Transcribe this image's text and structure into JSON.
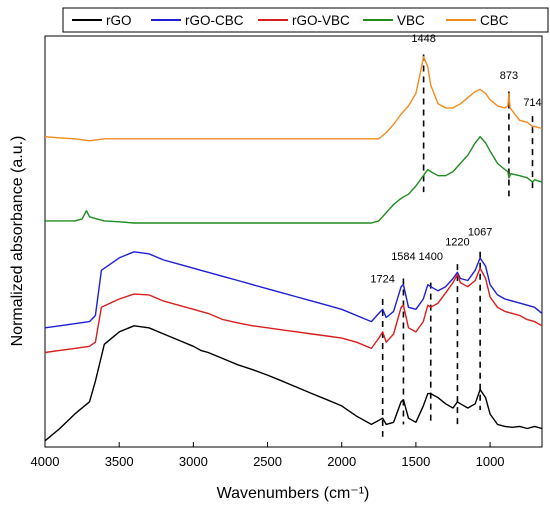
{
  "chart_data": {
    "type": "line",
    "xlabel": "Wavenumbers (cm⁻¹)",
    "ylabel": "Normalized absorbance (a.u.)",
    "xlim": [
      4000,
      650
    ],
    "x_reversed": true,
    "x_ticks": [
      "4000",
      "3500",
      "3000",
      "2500",
      "2000",
      "1500",
      "1000"
    ],
    "x_tick_values": [
      4000,
      3500,
      3000,
      2500,
      2000,
      1500,
      1000
    ],
    "ylim": [
      0,
      10
    ],
    "y_ticks_labeled": false,
    "grid": false,
    "legend_position": "top",
    "series": [
      {
        "name": "rGO",
        "color": "#000000",
        "points": [
          [
            4000,
            0.15
          ],
          [
            3900,
            0.45
          ],
          [
            3800,
            0.8
          ],
          [
            3700,
            1.1
          ],
          [
            3660,
            1.6
          ],
          [
            3600,
            2.5
          ],
          [
            3500,
            2.8
          ],
          [
            3400,
            2.95
          ],
          [
            3300,
            2.9
          ],
          [
            3200,
            2.75
          ],
          [
            3100,
            2.6
          ],
          [
            3000,
            2.45
          ],
          [
            2950,
            2.35
          ],
          [
            2900,
            2.3
          ],
          [
            2800,
            2.15
          ],
          [
            2700,
            2.0
          ],
          [
            2600,
            1.88
          ],
          [
            2500,
            1.75
          ],
          [
            2400,
            1.6
          ],
          [
            2300,
            1.45
          ],
          [
            2200,
            1.3
          ],
          [
            2100,
            1.15
          ],
          [
            2000,
            1.0
          ],
          [
            1900,
            0.75
          ],
          [
            1800,
            0.55
          ],
          [
            1750,
            0.65
          ],
          [
            1724,
            0.7
          ],
          [
            1700,
            0.55
          ],
          [
            1650,
            0.6
          ],
          [
            1600,
            1.1
          ],
          [
            1584,
            1.15
          ],
          [
            1550,
            0.7
          ],
          [
            1500,
            0.6
          ],
          [
            1450,
            1.0
          ],
          [
            1420,
            1.3
          ],
          [
            1400,
            1.3
          ],
          [
            1350,
            1.2
          ],
          [
            1300,
            1.05
          ],
          [
            1250,
            0.95
          ],
          [
            1220,
            1.1
          ],
          [
            1200,
            1.05
          ],
          [
            1150,
            0.95
          ],
          [
            1100,
            1.05
          ],
          [
            1067,
            1.4
          ],
          [
            1030,
            1.2
          ],
          [
            1000,
            0.8
          ],
          [
            950,
            0.55
          ],
          [
            900,
            0.5
          ],
          [
            850,
            0.48
          ],
          [
            800,
            0.5
          ],
          [
            750,
            0.45
          ],
          [
            700,
            0.5
          ],
          [
            650,
            0.45
          ]
        ]
      },
      {
        "name": "rGO-CBC",
        "color": "#1f1fd6",
        "points": [
          [
            4000,
            2.9
          ],
          [
            3900,
            2.95
          ],
          [
            3800,
            3.0
          ],
          [
            3700,
            3.05
          ],
          [
            3660,
            3.2
          ],
          [
            3620,
            4.3
          ],
          [
            3500,
            4.6
          ],
          [
            3400,
            4.75
          ],
          [
            3300,
            4.7
          ],
          [
            3200,
            4.55
          ],
          [
            3100,
            4.45
          ],
          [
            3000,
            4.35
          ],
          [
            2950,
            4.3
          ],
          [
            2900,
            4.25
          ],
          [
            2800,
            4.15
          ],
          [
            2700,
            4.05
          ],
          [
            2600,
            3.95
          ],
          [
            2500,
            3.85
          ],
          [
            2400,
            3.75
          ],
          [
            2300,
            3.65
          ],
          [
            2200,
            3.55
          ],
          [
            2100,
            3.45
          ],
          [
            2000,
            3.35
          ],
          [
            1900,
            3.2
          ],
          [
            1800,
            3.05
          ],
          [
            1750,
            3.25
          ],
          [
            1724,
            3.35
          ],
          [
            1700,
            3.15
          ],
          [
            1650,
            3.3
          ],
          [
            1600,
            3.9
          ],
          [
            1584,
            3.95
          ],
          [
            1550,
            3.4
          ],
          [
            1500,
            3.35
          ],
          [
            1450,
            3.6
          ],
          [
            1420,
            3.95
          ],
          [
            1400,
            3.9
          ],
          [
            1350,
            3.8
          ],
          [
            1300,
            3.9
          ],
          [
            1250,
            4.1
          ],
          [
            1220,
            4.25
          ],
          [
            1200,
            4.1
          ],
          [
            1150,
            4.05
          ],
          [
            1100,
            4.3
          ],
          [
            1067,
            4.6
          ],
          [
            1030,
            4.4
          ],
          [
            1000,
            3.95
          ],
          [
            950,
            3.7
          ],
          [
            900,
            3.6
          ],
          [
            850,
            3.55
          ],
          [
            800,
            3.5
          ],
          [
            750,
            3.45
          ],
          [
            700,
            3.4
          ],
          [
            650,
            3.25
          ]
        ]
      },
      {
        "name": "rGO-VBC",
        "color": "#d91e1e",
        "points": [
          [
            4000,
            2.3
          ],
          [
            3900,
            2.35
          ],
          [
            3800,
            2.4
          ],
          [
            3700,
            2.45
          ],
          [
            3660,
            2.55
          ],
          [
            3620,
            3.4
          ],
          [
            3500,
            3.6
          ],
          [
            3400,
            3.72
          ],
          [
            3300,
            3.7
          ],
          [
            3200,
            3.55
          ],
          [
            3100,
            3.45
          ],
          [
            3000,
            3.35
          ],
          [
            2950,
            3.3
          ],
          [
            2900,
            3.25
          ],
          [
            2800,
            3.1
          ],
          [
            2700,
            3.02
          ],
          [
            2600,
            2.95
          ],
          [
            2500,
            2.9
          ],
          [
            2400,
            2.85
          ],
          [
            2300,
            2.8
          ],
          [
            2200,
            2.75
          ],
          [
            2100,
            2.7
          ],
          [
            2000,
            2.65
          ],
          [
            1900,
            2.55
          ],
          [
            1800,
            2.4
          ],
          [
            1750,
            2.65
          ],
          [
            1724,
            2.8
          ],
          [
            1700,
            2.55
          ],
          [
            1650,
            2.75
          ],
          [
            1600,
            3.4
          ],
          [
            1584,
            3.45
          ],
          [
            1550,
            2.9
          ],
          [
            1500,
            2.8
          ],
          [
            1450,
            3.05
          ],
          [
            1420,
            3.45
          ],
          [
            1400,
            3.4
          ],
          [
            1350,
            3.5
          ],
          [
            1300,
            3.75
          ],
          [
            1250,
            4.0
          ],
          [
            1220,
            4.2
          ],
          [
            1200,
            4.0
          ],
          [
            1150,
            3.9
          ],
          [
            1100,
            4.05
          ],
          [
            1067,
            4.35
          ],
          [
            1030,
            4.1
          ],
          [
            1000,
            3.65
          ],
          [
            950,
            3.4
          ],
          [
            900,
            3.3
          ],
          [
            850,
            3.25
          ],
          [
            800,
            3.2
          ],
          [
            750,
            3.1
          ],
          [
            700,
            3.05
          ],
          [
            650,
            2.95
          ]
        ]
      },
      {
        "name": "VBC",
        "color": "#1e8c1e",
        "points": [
          [
            4000,
            5.5
          ],
          [
            3900,
            5.5
          ],
          [
            3800,
            5.5
          ],
          [
            3750,
            5.55
          ],
          [
            3720,
            5.75
          ],
          [
            3700,
            5.6
          ],
          [
            3650,
            5.55
          ],
          [
            3600,
            5.5
          ],
          [
            3500,
            5.48
          ],
          [
            3400,
            5.45
          ],
          [
            3300,
            5.45
          ],
          [
            3200,
            5.45
          ],
          [
            3000,
            5.45
          ],
          [
            2800,
            5.45
          ],
          [
            2600,
            5.45
          ],
          [
            2400,
            5.45
          ],
          [
            2200,
            5.45
          ],
          [
            2000,
            5.45
          ],
          [
            1900,
            5.45
          ],
          [
            1800,
            5.45
          ],
          [
            1750,
            5.5
          ],
          [
            1700,
            5.7
          ],
          [
            1650,
            5.9
          ],
          [
            1600,
            6.05
          ],
          [
            1550,
            6.15
          ],
          [
            1500,
            6.35
          ],
          [
            1450,
            6.6
          ],
          [
            1420,
            6.75
          ],
          [
            1400,
            6.7
          ],
          [
            1350,
            6.6
          ],
          [
            1300,
            6.6
          ],
          [
            1250,
            6.7
          ],
          [
            1200,
            6.9
          ],
          [
            1150,
            7.1
          ],
          [
            1100,
            7.4
          ],
          [
            1067,
            7.55
          ],
          [
            1030,
            7.4
          ],
          [
            1000,
            7.2
          ],
          [
            950,
            6.9
          ],
          [
            900,
            6.75
          ],
          [
            880,
            6.7
          ],
          [
            873,
            6.55
          ],
          [
            860,
            6.65
          ],
          [
            800,
            6.6
          ],
          [
            750,
            6.55
          ],
          [
            714,
            6.45
          ],
          [
            700,
            6.5
          ],
          [
            650,
            6.45
          ]
        ]
      },
      {
        "name": "CBC",
        "color": "#f08c1e",
        "points": [
          [
            4000,
            7.55
          ],
          [
            3900,
            7.52
          ],
          [
            3800,
            7.5
          ],
          [
            3700,
            7.45
          ],
          [
            3600,
            7.5
          ],
          [
            3500,
            7.5
          ],
          [
            3400,
            7.5
          ],
          [
            3300,
            7.5
          ],
          [
            3200,
            7.5
          ],
          [
            3000,
            7.5
          ],
          [
            2800,
            7.5
          ],
          [
            2600,
            7.5
          ],
          [
            2400,
            7.5
          ],
          [
            2200,
            7.5
          ],
          [
            2000,
            7.5
          ],
          [
            1900,
            7.5
          ],
          [
            1800,
            7.5
          ],
          [
            1750,
            7.5
          ],
          [
            1700,
            7.65
          ],
          [
            1650,
            7.85
          ],
          [
            1600,
            8.1
          ],
          [
            1550,
            8.3
          ],
          [
            1500,
            8.6
          ],
          [
            1470,
            9.1
          ],
          [
            1448,
            9.5
          ],
          [
            1420,
            9.25
          ],
          [
            1400,
            8.8
          ],
          [
            1350,
            8.35
          ],
          [
            1300,
            8.25
          ],
          [
            1250,
            8.25
          ],
          [
            1200,
            8.35
          ],
          [
            1150,
            8.5
          ],
          [
            1100,
            8.65
          ],
          [
            1067,
            8.7
          ],
          [
            1030,
            8.6
          ],
          [
            1000,
            8.45
          ],
          [
            950,
            8.3
          ],
          [
            900,
            8.25
          ],
          [
            880,
            8.3
          ],
          [
            873,
            8.6
          ],
          [
            865,
            8.25
          ],
          [
            800,
            7.95
          ],
          [
            750,
            7.9
          ],
          [
            714,
            7.8
          ],
          [
            700,
            7.8
          ],
          [
            650,
            7.75
          ]
        ]
      }
    ],
    "annotations": [
      {
        "label": "1724",
        "x": 1724,
        "label_y": 4.0,
        "line_top": 3.6,
        "line_bottom": 0.25
      },
      {
        "label": "1584",
        "x": 1584,
        "label_y": 4.55,
        "line_top": 4.1,
        "line_bottom": 0.55
      },
      {
        "label": "1400",
        "x": 1400,
        "label_y": 4.55,
        "line_top": 4.0,
        "line_bottom": 0.55
      },
      {
        "label": "1220",
        "x": 1220,
        "label_y": 4.9,
        "line_top": 4.45,
        "line_bottom": 0.5
      },
      {
        "label": "1067",
        "x": 1067,
        "label_y": 5.15,
        "line_top": 4.75,
        "line_bottom": 0.9
      },
      {
        "label": "1448",
        "x": 1448,
        "label_y": 9.85,
        "line_top": 9.55,
        "line_bottom": 6.2
      },
      {
        "label": "873",
        "x": 873,
        "label_y": 8.95,
        "line_top": 8.65,
        "line_bottom": 6.1
      },
      {
        "label": "714",
        "x": 714,
        "label_y": 8.3,
        "line_top": 8.05,
        "line_bottom": 6.2
      }
    ]
  }
}
